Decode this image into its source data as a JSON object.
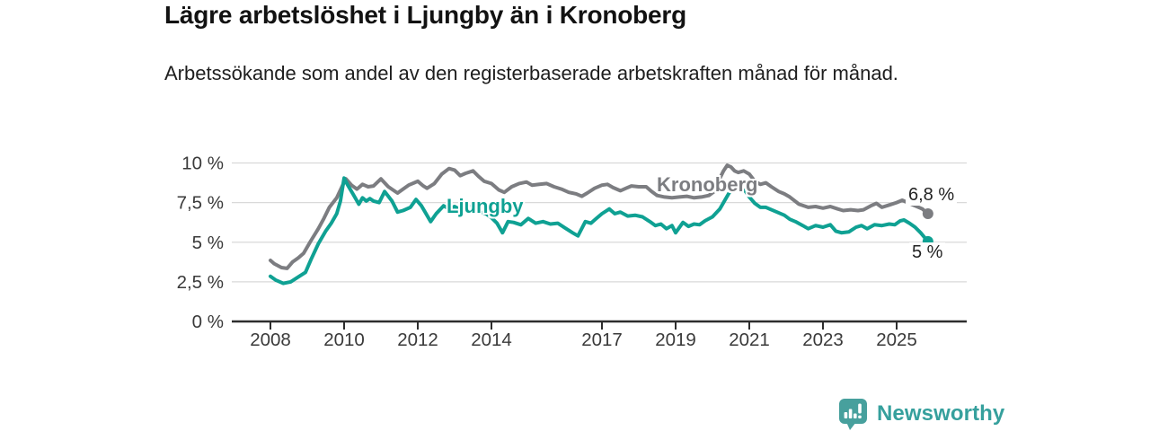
{
  "header": {
    "title": "Lägre arbetslöshet i Ljungby än i Kronoberg",
    "subtitle": "Arbetssökande som andel av den registerbaserade arbetskraften månad för månad."
  },
  "chart_data": {
    "type": "line",
    "unit": "%",
    "grid": true,
    "x_domain": [
      2008,
      2025.85
    ],
    "y_domain": [
      0,
      10
    ],
    "x_ticks": [
      {
        "value": 2008,
        "label": "2008"
      },
      {
        "value": 2010,
        "label": "2010"
      },
      {
        "value": 2012,
        "label": "2012"
      },
      {
        "value": 2014,
        "label": "2014"
      },
      {
        "value": 2017,
        "label": "2017"
      },
      {
        "value": 2019,
        "label": "2019"
      },
      {
        "value": 2021,
        "label": "2021"
      },
      {
        "value": 2023,
        "label": "2023"
      },
      {
        "value": 2025,
        "label": "2025"
      }
    ],
    "y_ticks": [
      {
        "value": 0,
        "label": "0 %"
      },
      {
        "value": 2.5,
        "label": "2,5 %"
      },
      {
        "value": 5,
        "label": "5 %"
      },
      {
        "value": 7.5,
        "label": "7,5 %"
      },
      {
        "value": 10,
        "label": "10 %"
      }
    ],
    "series": [
      {
        "name": "Kronoberg",
        "label_text": "Kronoberg",
        "end_label": "6,8 %",
        "end_value": 6.8,
        "color": "#7c7d81",
        "points": [
          [
            2008.0,
            3.85
          ],
          [
            2008.1,
            3.65
          ],
          [
            2008.3,
            3.4
          ],
          [
            2008.45,
            3.35
          ],
          [
            2008.6,
            3.75
          ],
          [
            2008.75,
            4.0
          ],
          [
            2008.9,
            4.3
          ],
          [
            2009.1,
            5.1
          ],
          [
            2009.3,
            5.85
          ],
          [
            2009.45,
            6.5
          ],
          [
            2009.6,
            7.2
          ],
          [
            2009.8,
            7.8
          ],
          [
            2009.95,
            8.55
          ],
          [
            2010.05,
            9.0
          ],
          [
            2010.2,
            8.6
          ],
          [
            2010.35,
            8.35
          ],
          [
            2010.5,
            8.65
          ],
          [
            2010.65,
            8.5
          ],
          [
            2010.8,
            8.55
          ],
          [
            2011.0,
            9.0
          ],
          [
            2011.2,
            8.5
          ],
          [
            2011.45,
            8.1
          ],
          [
            2011.6,
            8.35
          ],
          [
            2011.75,
            8.6
          ],
          [
            2011.9,
            8.75
          ],
          [
            2012.0,
            8.85
          ],
          [
            2012.15,
            8.55
          ],
          [
            2012.25,
            8.4
          ],
          [
            2012.45,
            8.7
          ],
          [
            2012.65,
            9.3
          ],
          [
            2012.85,
            9.65
          ],
          [
            2013.0,
            9.55
          ],
          [
            2013.15,
            9.2
          ],
          [
            2013.3,
            9.35
          ],
          [
            2013.5,
            9.5
          ],
          [
            2013.65,
            9.15
          ],
          [
            2013.8,
            8.85
          ],
          [
            2014.0,
            8.7
          ],
          [
            2014.2,
            8.3
          ],
          [
            2014.35,
            8.15
          ],
          [
            2014.55,
            8.5
          ],
          [
            2014.75,
            8.7
          ],
          [
            2014.95,
            8.8
          ],
          [
            2015.1,
            8.6
          ],
          [
            2015.3,
            8.65
          ],
          [
            2015.5,
            8.7
          ],
          [
            2015.7,
            8.5
          ],
          [
            2015.9,
            8.35
          ],
          [
            2016.1,
            8.15
          ],
          [
            2016.3,
            8.05
          ],
          [
            2016.45,
            7.9
          ],
          [
            2016.6,
            8.1
          ],
          [
            2016.8,
            8.4
          ],
          [
            2017.0,
            8.6
          ],
          [
            2017.15,
            8.65
          ],
          [
            2017.3,
            8.45
          ],
          [
            2017.5,
            8.25
          ],
          [
            2017.65,
            8.4
          ],
          [
            2017.8,
            8.55
          ],
          [
            2018.0,
            8.5
          ],
          [
            2018.2,
            8.5
          ],
          [
            2018.35,
            8.2
          ],
          [
            2018.5,
            7.95
          ],
          [
            2018.7,
            7.85
          ],
          [
            2018.9,
            7.8
          ],
          [
            2019.1,
            7.85
          ],
          [
            2019.3,
            7.9
          ],
          [
            2019.5,
            7.8
          ],
          [
            2019.7,
            7.85
          ],
          [
            2019.9,
            7.95
          ],
          [
            2020.05,
            8.2
          ],
          [
            2020.15,
            8.8
          ],
          [
            2020.3,
            9.5
          ],
          [
            2020.4,
            9.85
          ],
          [
            2020.5,
            9.75
          ],
          [
            2020.6,
            9.5
          ],
          [
            2020.7,
            9.4
          ],
          [
            2020.85,
            9.5
          ],
          [
            2021.0,
            9.3
          ],
          [
            2021.15,
            8.85
          ],
          [
            2021.3,
            8.65
          ],
          [
            2021.45,
            8.75
          ],
          [
            2021.6,
            8.5
          ],
          [
            2021.8,
            8.2
          ],
          [
            2021.95,
            8.05
          ],
          [
            2022.1,
            7.85
          ],
          [
            2022.35,
            7.4
          ],
          [
            2022.6,
            7.2
          ],
          [
            2022.8,
            7.25
          ],
          [
            2023.0,
            7.15
          ],
          [
            2023.2,
            7.25
          ],
          [
            2023.4,
            7.1
          ],
          [
            2023.55,
            7.0
          ],
          [
            2023.75,
            7.05
          ],
          [
            2023.95,
            7.0
          ],
          [
            2024.1,
            7.05
          ],
          [
            2024.3,
            7.3
          ],
          [
            2024.45,
            7.45
          ],
          [
            2024.6,
            7.2
          ],
          [
            2024.8,
            7.35
          ],
          [
            2025.0,
            7.5
          ],
          [
            2025.15,
            7.65
          ],
          [
            2025.3,
            7.5
          ],
          [
            2025.5,
            7.3
          ],
          [
            2025.7,
            7.1
          ],
          [
            2025.85,
            6.8
          ]
        ]
      },
      {
        "name": "Ljungby",
        "label_text": "Ljungby",
        "end_label": "5 %",
        "end_value": 5.0,
        "color": "#0fa193",
        "points": [
          [
            2008.0,
            2.85
          ],
          [
            2008.15,
            2.6
          ],
          [
            2008.35,
            2.4
          ],
          [
            2008.55,
            2.5
          ],
          [
            2008.75,
            2.8
          ],
          [
            2008.95,
            3.1
          ],
          [
            2009.1,
            3.9
          ],
          [
            2009.3,
            4.9
          ],
          [
            2009.5,
            5.7
          ],
          [
            2009.65,
            6.2
          ],
          [
            2009.8,
            6.8
          ],
          [
            2009.9,
            7.6
          ],
          [
            2010.0,
            9.05
          ],
          [
            2010.1,
            8.6
          ],
          [
            2010.25,
            8.0
          ],
          [
            2010.4,
            7.4
          ],
          [
            2010.5,
            7.8
          ],
          [
            2010.6,
            7.6
          ],
          [
            2010.7,
            7.75
          ],
          [
            2010.8,
            7.6
          ],
          [
            2010.95,
            7.5
          ],
          [
            2011.1,
            8.2
          ],
          [
            2011.3,
            7.6
          ],
          [
            2011.45,
            6.9
          ],
          [
            2011.6,
            7.0
          ],
          [
            2011.8,
            7.2
          ],
          [
            2011.95,
            7.7
          ],
          [
            2012.1,
            7.3
          ],
          [
            2012.2,
            6.9
          ],
          [
            2012.35,
            6.3
          ],
          [
            2012.5,
            6.8
          ],
          [
            2012.7,
            7.3
          ],
          [
            2012.85,
            7.1
          ],
          [
            2013.0,
            7.25
          ],
          [
            2013.2,
            7.0
          ],
          [
            2013.35,
            7.3
          ],
          [
            2013.5,
            7.2
          ],
          [
            2013.7,
            6.9
          ],
          [
            2013.85,
            6.8
          ],
          [
            2014.0,
            6.55
          ],
          [
            2014.15,
            6.2
          ],
          [
            2014.3,
            5.6
          ],
          [
            2014.45,
            6.3
          ],
          [
            2014.6,
            6.25
          ],
          [
            2014.8,
            6.1
          ],
          [
            2015.0,
            6.5
          ],
          [
            2015.2,
            6.2
          ],
          [
            2015.4,
            6.3
          ],
          [
            2015.6,
            6.15
          ],
          [
            2015.8,
            6.2
          ],
          [
            2016.0,
            5.9
          ],
          [
            2016.2,
            5.6
          ],
          [
            2016.35,
            5.4
          ],
          [
            2016.55,
            6.3
          ],
          [
            2016.7,
            6.2
          ],
          [
            2016.85,
            6.5
          ],
          [
            2017.0,
            6.8
          ],
          [
            2017.2,
            7.1
          ],
          [
            2017.35,
            6.8
          ],
          [
            2017.5,
            6.9
          ],
          [
            2017.7,
            6.65
          ],
          [
            2017.9,
            6.7
          ],
          [
            2018.1,
            6.6
          ],
          [
            2018.3,
            6.3
          ],
          [
            2018.45,
            6.05
          ],
          [
            2018.6,
            6.15
          ],
          [
            2018.75,
            5.85
          ],
          [
            2018.9,
            6.05
          ],
          [
            2019.0,
            5.6
          ],
          [
            2019.2,
            6.25
          ],
          [
            2019.35,
            6.0
          ],
          [
            2019.5,
            6.15
          ],
          [
            2019.65,
            6.1
          ],
          [
            2019.8,
            6.35
          ],
          [
            2020.0,
            6.6
          ],
          [
            2020.2,
            7.1
          ],
          [
            2020.35,
            7.7
          ],
          [
            2020.5,
            8.3
          ],
          [
            2020.6,
            8.45
          ],
          [
            2020.75,
            8.4
          ],
          [
            2020.9,
            8.2
          ],
          [
            2021.0,
            7.85
          ],
          [
            2021.15,
            7.45
          ],
          [
            2021.3,
            7.2
          ],
          [
            2021.45,
            7.2
          ],
          [
            2021.6,
            7.05
          ],
          [
            2021.75,
            6.9
          ],
          [
            2021.95,
            6.7
          ],
          [
            2022.1,
            6.45
          ],
          [
            2022.25,
            6.3
          ],
          [
            2022.45,
            6.05
          ],
          [
            2022.6,
            5.85
          ],
          [
            2022.8,
            6.05
          ],
          [
            2023.0,
            5.95
          ],
          [
            2023.2,
            6.1
          ],
          [
            2023.35,
            5.7
          ],
          [
            2023.5,
            5.6
          ],
          [
            2023.7,
            5.65
          ],
          [
            2023.9,
            5.95
          ],
          [
            2024.05,
            6.05
          ],
          [
            2024.2,
            5.85
          ],
          [
            2024.4,
            6.1
          ],
          [
            2024.6,
            6.05
          ],
          [
            2024.8,
            6.15
          ],
          [
            2024.95,
            6.1
          ],
          [
            2025.1,
            6.35
          ],
          [
            2025.2,
            6.4
          ],
          [
            2025.35,
            6.2
          ],
          [
            2025.5,
            5.95
          ],
          [
            2025.65,
            5.6
          ],
          [
            2025.85,
            5.05
          ]
        ]
      }
    ],
    "colors": {
      "grid": "#d9d9d9",
      "axis": "#2d2d2d",
      "tick_text": "#3a3a3a",
      "value_label_text": "#232323"
    }
  },
  "footer": {
    "brand": "Newsworthy",
    "brand_color": "#36a09d",
    "logo_icon": "speech-bubble-bar-chart-icon"
  }
}
